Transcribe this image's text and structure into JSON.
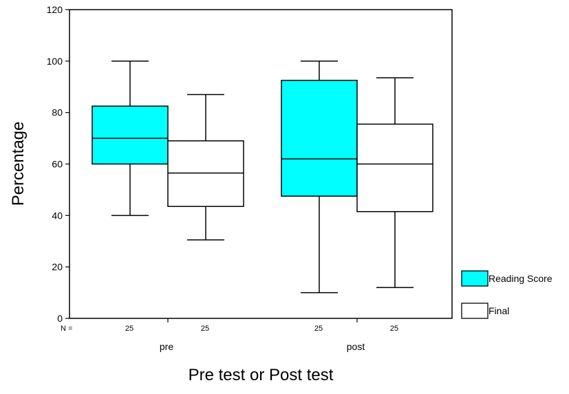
{
  "chart_data": {
    "type": "boxplot",
    "title": "",
    "xlabel": "Pre test or Post test",
    "ylabel": "Percentage",
    "ylim": [
      0,
      120
    ],
    "yticks": [
      0,
      20,
      40,
      60,
      80,
      100,
      120
    ],
    "grid": false,
    "legend_position": "right",
    "n_label": "N =",
    "categories": [
      "pre",
      "post"
    ],
    "series": [
      {
        "name": "Reading Score",
        "color": "#00ffff",
        "n": [
          "25",
          "25"
        ],
        "boxes": [
          {
            "category": "pre",
            "min": 40,
            "q1": 60,
            "median": 70,
            "q3": 82.5,
            "max": 100
          },
          {
            "category": "post",
            "min": 10,
            "q1": 47.5,
            "median": 62,
            "q3": 92.5,
            "max": 100
          }
        ]
      },
      {
        "name": "Final",
        "color": "#ffffff",
        "n": [
          "25",
          "25"
        ],
        "boxes": [
          {
            "category": "pre",
            "min": 30.5,
            "q1": 43.5,
            "median": 56.5,
            "q3": 69,
            "max": 87
          },
          {
            "category": "post",
            "min": 12,
            "q1": 41.5,
            "median": 60,
            "q3": 75.5,
            "max": 93.5
          }
        ]
      }
    ]
  }
}
